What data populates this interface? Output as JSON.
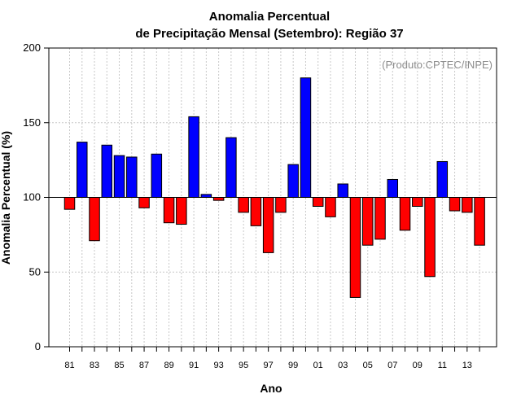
{
  "chart_data": {
    "type": "bar",
    "title": "Anomalia Percentual",
    "subtitle": "de Precipitação Mensal (Setembro): Região 37",
    "xlabel": "Ano",
    "ylabel": "Anomalia Percentual (%)",
    "annotation": "(Produto:CPTEC/INPE)",
    "ylim": [
      0,
      200
    ],
    "yticks": [
      0,
      50,
      100,
      150,
      200
    ],
    "baseline": 100,
    "grid": true,
    "categories": [
      "81",
      "82",
      "83",
      "84",
      "85",
      "86",
      "87",
      "88",
      "89",
      "90",
      "91",
      "92",
      "93",
      "94",
      "95",
      "96",
      "97",
      "98",
      "99",
      "00",
      "01",
      "02",
      "03",
      "04",
      "05",
      "06",
      "07",
      "08",
      "09",
      "10",
      "11",
      "12",
      "13",
      "14"
    ],
    "values": [
      92,
      137,
      71,
      135,
      128,
      127,
      93,
      129,
      83,
      82,
      154,
      102,
      98,
      140,
      90,
      81,
      63,
      90,
      122,
      180,
      94,
      87,
      109,
      33,
      68,
      72,
      112,
      78,
      94,
      47,
      124,
      91,
      90,
      68
    ],
    "xtick_labels": [
      "81",
      "83",
      "85",
      "87",
      "89",
      "91",
      "93",
      "95",
      "97",
      "99",
      "01",
      "03",
      "05",
      "07",
      "09",
      "11",
      "13"
    ],
    "colors": {
      "above": "#0000ff",
      "below": "#ff0000",
      "grid": "#c8c8c8",
      "axis": "#000000"
    }
  }
}
